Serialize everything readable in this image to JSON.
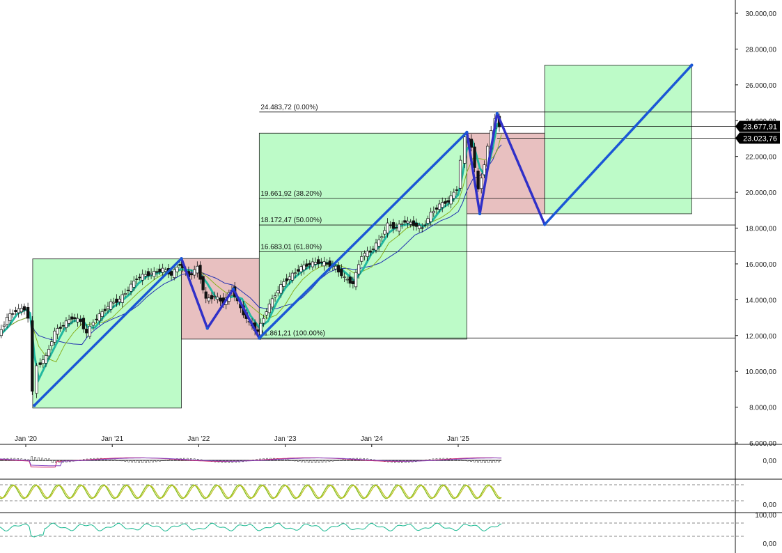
{
  "chart_data": {
    "type": "candlestick",
    "y_axis": {
      "ticks": [
        "30.000,00",
        "28.000,00",
        "26.000,00",
        "24.000,00",
        "22.000,00",
        "20.000,00",
        "18.000,00",
        "16.000,00",
        "14.000,00",
        "12.000,00",
        "10.000,00",
        "8.000,00",
        "6.000,00"
      ],
      "tick_values": [
        30000,
        28000,
        26000,
        24000,
        22000,
        20000,
        18000,
        16000,
        14000,
        12000,
        10000,
        8000,
        6000
      ],
      "range": [
        6000,
        31200
      ],
      "side": "right"
    },
    "x_axis": {
      "tick_labels": [
        "Jan '20",
        "Jan '21",
        "Jan '22",
        "Jan '23",
        "Jan '24",
        "Jan '25"
      ],
      "tick_times": [
        2020.0,
        2021.0,
        2022.0,
        2023.0,
        2024.0,
        2025.0
      ],
      "range": [
        2019.7,
        2027.7
      ]
    },
    "price_badges": [
      {
        "label": "23.677,91",
        "value": 23677.91
      },
      {
        "label": "23.023,76",
        "value": 23023.76
      }
    ],
    "fibonacci": [
      {
        "label": "24.483,72 (0.00%)",
        "value": 24483.72
      },
      {
        "label": "19.661,92 (38.20%)",
        "value": 19661.92
      },
      {
        "label": "18.172,47 (50.00%)",
        "value": 18172.47
      },
      {
        "label": "16.683,01 (61.80%)",
        "value": 16683.01
      },
      {
        "label": "11.861,21 (100.00%)",
        "value": 11861.21
      }
    ],
    "boxes": [
      {
        "t0": 2020.08,
        "t1": 2021.8,
        "p0": 7950,
        "p1": 16280,
        "kind": "up"
      },
      {
        "t0": 2021.8,
        "t1": 2022.7,
        "p0": 11800,
        "p1": 16300,
        "kind": "down"
      },
      {
        "t0": 2022.7,
        "t1": 2025.1,
        "p0": 11800,
        "p1": 23300,
        "kind": "up"
      },
      {
        "t0": 2025.1,
        "t1": 2026.0,
        "p0": 18800,
        "p1": 23300,
        "kind": "down"
      },
      {
        "t0": 2026.0,
        "t1": 2027.7,
        "p0": 18800,
        "p1": 27100,
        "kind": "up"
      }
    ],
    "projection_path": [
      {
        "t": 2020.1,
        "p": 8100
      },
      {
        "t": 2021.8,
        "p": 16300
      },
      {
        "t": 2022.1,
        "p": 12400
      },
      {
        "t": 2022.4,
        "p": 14600
      },
      {
        "t": 2022.7,
        "p": 11850
      },
      {
        "t": 2025.1,
        "p": 23350
      },
      {
        "t": 2025.25,
        "p": 18800
      },
      {
        "t": 2025.45,
        "p": 24400
      },
      {
        "t": 2026.0,
        "p": 18200
      },
      {
        "t": 2027.7,
        "p": 27100
      }
    ],
    "close_series": [
      {
        "t": 2019.7,
        "p": 12000
      },
      {
        "t": 2019.8,
        "p": 13000
      },
      {
        "t": 2019.9,
        "p": 13400
      },
      {
        "t": 2020.0,
        "p": 13500
      },
      {
        "t": 2020.05,
        "p": 13000
      },
      {
        "t": 2020.1,
        "p": 8800
      },
      {
        "t": 2020.15,
        "p": 10300
      },
      {
        "t": 2020.25,
        "p": 10800
      },
      {
        "t": 2020.35,
        "p": 12200
      },
      {
        "t": 2020.45,
        "p": 12600
      },
      {
        "t": 2020.55,
        "p": 13000
      },
      {
        "t": 2020.65,
        "p": 12800
      },
      {
        "t": 2020.72,
        "p": 12100
      },
      {
        "t": 2020.8,
        "p": 12800
      },
      {
        "t": 2020.9,
        "p": 13300
      },
      {
        "t": 2021.0,
        "p": 13800
      },
      {
        "t": 2021.1,
        "p": 14000
      },
      {
        "t": 2021.2,
        "p": 14600
      },
      {
        "t": 2021.3,
        "p": 15200
      },
      {
        "t": 2021.4,
        "p": 15400
      },
      {
        "t": 2021.5,
        "p": 15500
      },
      {
        "t": 2021.6,
        "p": 15700
      },
      {
        "t": 2021.7,
        "p": 15400
      },
      {
        "t": 2021.8,
        "p": 16000
      },
      {
        "t": 2021.9,
        "p": 15300
      },
      {
        "t": 2022.0,
        "p": 15800
      },
      {
        "t": 2022.1,
        "p": 14000
      },
      {
        "t": 2022.2,
        "p": 14200
      },
      {
        "t": 2022.3,
        "p": 13800
      },
      {
        "t": 2022.4,
        "p": 14600
      },
      {
        "t": 2022.5,
        "p": 13500
      },
      {
        "t": 2022.6,
        "p": 12700
      },
      {
        "t": 2022.7,
        "p": 12200
      },
      {
        "t": 2022.8,
        "p": 13400
      },
      {
        "t": 2022.9,
        "p": 14300
      },
      {
        "t": 2023.0,
        "p": 15000
      },
      {
        "t": 2023.1,
        "p": 15400
      },
      {
        "t": 2023.2,
        "p": 15800
      },
      {
        "t": 2023.3,
        "p": 16000
      },
      {
        "t": 2023.4,
        "p": 16100
      },
      {
        "t": 2023.5,
        "p": 16000
      },
      {
        "t": 2023.6,
        "p": 15800
      },
      {
        "t": 2023.7,
        "p": 15200
      },
      {
        "t": 2023.8,
        "p": 14900
      },
      {
        "t": 2023.9,
        "p": 16500
      },
      {
        "t": 2024.0,
        "p": 16700
      },
      {
        "t": 2024.1,
        "p": 17300
      },
      {
        "t": 2024.2,
        "p": 18200
      },
      {
        "t": 2024.3,
        "p": 18000
      },
      {
        "t": 2024.4,
        "p": 18400
      },
      {
        "t": 2024.5,
        "p": 18200
      },
      {
        "t": 2024.6,
        "p": 18000
      },
      {
        "t": 2024.7,
        "p": 18800
      },
      {
        "t": 2024.8,
        "p": 19300
      },
      {
        "t": 2024.9,
        "p": 19500
      },
      {
        "t": 2025.0,
        "p": 20200
      },
      {
        "t": 2025.05,
        "p": 21800
      },
      {
        "t": 2025.1,
        "p": 23000
      },
      {
        "t": 2025.17,
        "p": 22600
      },
      {
        "t": 2025.25,
        "p": 20100
      },
      {
        "t": 2025.32,
        "p": 21600
      },
      {
        "t": 2025.4,
        "p": 23400
      },
      {
        "t": 2025.45,
        "p": 24200
      },
      {
        "t": 2025.5,
        "p": 23680
      }
    ],
    "panels": [
      {
        "name": "macd",
        "ticks": [
          "0,00"
        ],
        "tick_values": [
          0
        ],
        "range": [
          -3,
          3
        ]
      },
      {
        "name": "stochastic",
        "ticks": [
          "0,00"
        ],
        "tick_values": [
          0
        ],
        "range": [
          0,
          100
        ]
      },
      {
        "name": "rsi",
        "ticks": [
          "100,00",
          "0,00"
        ],
        "tick_values": [
          100,
          0
        ],
        "range": [
          0,
          110
        ]
      }
    ],
    "colors": {
      "bull_box": "#bdfbc8",
      "bear_box": "#e8c0c0",
      "projection": "#1b57d6",
      "projection_alt": "#3030c8",
      "ema_fast": "#22b8a0",
      "ema_mid": "#88b020",
      "ema_slow": "#2030b0",
      "ema_red": "#c04060",
      "macd_line": "#d0206a",
      "stoch_k": "#88c020",
      "stoch_d": "#c0c020",
      "rsi": "#18b890",
      "badge": "#000000"
    },
    "grid": false,
    "legend": "none"
  }
}
